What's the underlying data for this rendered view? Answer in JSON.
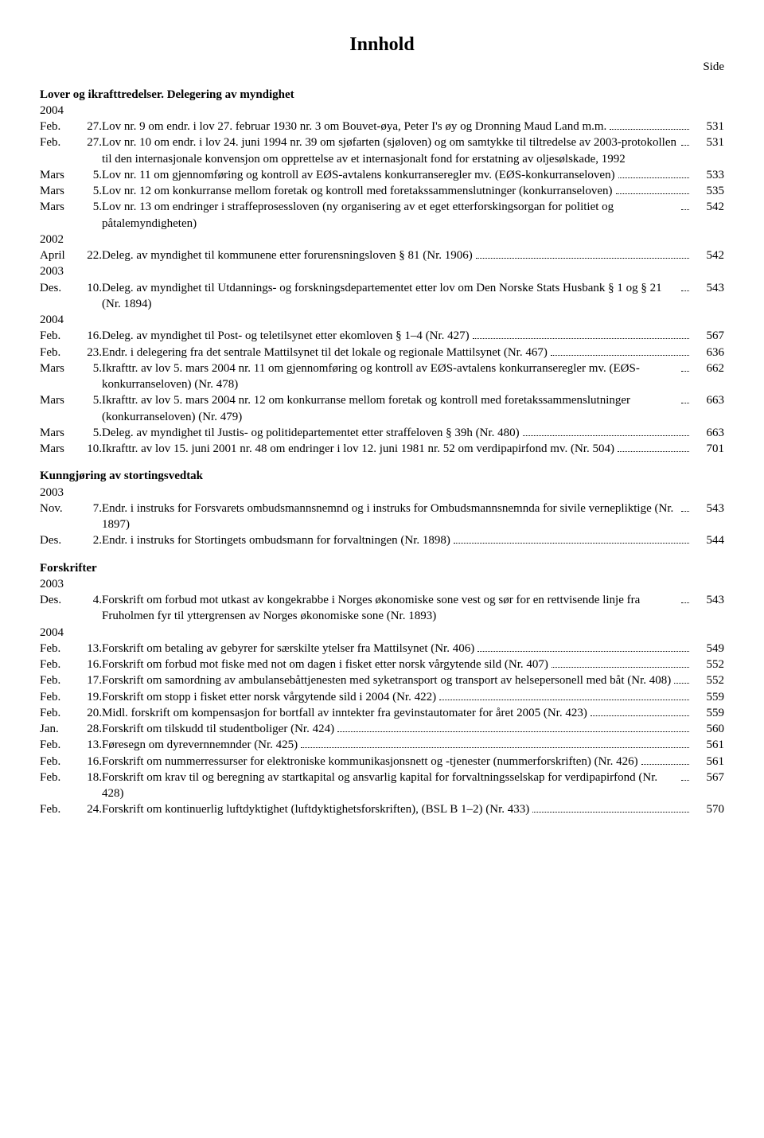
{
  "title": "Innhold",
  "side_label": "Side",
  "sections": [
    {
      "heading": "Lover og ikrafttredelser. Delegering av myndighet",
      "groups": [
        {
          "year": "2004",
          "entries": [
            {
              "month": "Feb.",
              "num": "27.",
              "text": "Lov nr. 9 om endr. i lov 27. februar 1930 nr. 3 om Bouvet-øya, Peter I's øy og Dronning Maud Land m.m.",
              "page": "531"
            },
            {
              "month": "Feb.",
              "num": "27.",
              "text": "Lov nr. 10 om endr. i lov 24. juni 1994 nr. 39 om sjøfarten (sjøloven) og om samtykke til tiltredelse av 2003-protokollen til den internasjonale konvensjon om opprettelse av et internasjonalt fond for erstatning av oljesølskade, 1992",
              "page": "531"
            },
            {
              "month": "Mars",
              "num": "5.",
              "text": "Lov nr. 11 om gjennomføring og kontroll av EØS-avtalens konkurranseregler mv. (EØS-konkurranseloven)",
              "page": "533"
            },
            {
              "month": "Mars",
              "num": "5.",
              "text": "Lov nr. 12 om konkurranse mellom foretak og kontroll med foretakssammenslutninger (konkurranseloven)",
              "page": "535"
            },
            {
              "month": "Mars",
              "num": "5.",
              "text": "Lov nr. 13 om endringer i straffeprosessloven (ny organisering av et eget etterforskingsorgan for politiet og påtalemyndigheten)",
              "page": "542"
            }
          ]
        },
        {
          "year": "2002",
          "entries": [
            {
              "month": "April",
              "num": "22.",
              "text": "Deleg. av myndighet til kommunene etter forurensningsloven § 81 (Nr. 1906)",
              "page": "542"
            }
          ]
        },
        {
          "year": "2003",
          "entries": [
            {
              "month": "Des.",
              "num": "10.",
              "text": "Deleg. av myndighet til Utdannings- og forskningsdepartementet etter lov om Den Norske Stats Husbank § 1 og § 21 (Nr. 1894)",
              "page": "543"
            }
          ]
        },
        {
          "year": "2004",
          "entries": [
            {
              "month": "Feb.",
              "num": "16.",
              "text": "Deleg. av myndighet til Post- og teletilsynet etter ekomloven § 1–4 (Nr. 427)",
              "page": "567"
            },
            {
              "month": "Feb.",
              "num": "23.",
              "text": "Endr. i delegering fra det sentrale Mattilsynet til det lokale og regionale Mattilsynet (Nr. 467)",
              "page": "636"
            },
            {
              "month": "Mars",
              "num": "5.",
              "text": "Ikrafttr. av lov 5. mars 2004 nr. 11 om gjennomføring og kontroll av EØS-avtalens konkurranseregler mv. (EØS-konkurranseloven) (Nr. 478)",
              "page": "662"
            },
            {
              "month": "Mars",
              "num": "5.",
              "text": "Ikrafttr. av lov 5. mars 2004 nr. 12 om konkurranse mellom foretak og kontroll med foretakssammenslutninger (konkurranseloven) (Nr. 479)",
              "page": "663"
            },
            {
              "month": "Mars",
              "num": "5.",
              "text": "Deleg. av myndighet til Justis- og politidepartementet etter straffeloven § 39h (Nr. 480)",
              "page": "663"
            },
            {
              "month": "Mars",
              "num": "10.",
              "text": "Ikrafttr. av lov 15. juni 2001 nr. 48 om endringer i lov 12. juni 1981 nr. 52 om verdipapirfond mv. (Nr. 504)",
              "page": "701"
            }
          ]
        }
      ]
    },
    {
      "heading": "Kunngjøring av stortingsvedtak",
      "groups": [
        {
          "year": "2003",
          "entries": [
            {
              "month": "Nov.",
              "num": "7.",
              "text": "Endr. i instruks for Forsvarets ombudsmannsnemnd og i instruks for Ombudsmannsnemnda for sivile vernepliktige (Nr. 1897)",
              "page": "543"
            },
            {
              "month": "Des.",
              "num": "2.",
              "text": "Endr. i instruks for Stortingets ombudsmann for forvaltningen (Nr. 1898)",
              "page": "544"
            }
          ]
        }
      ]
    },
    {
      "heading": "Forskrifter",
      "groups": [
        {
          "year": "2003",
          "entries": [
            {
              "month": "Des.",
              "num": "4.",
              "text": "Forskrift om forbud mot utkast av kongekrabbe i Norges økonomiske sone vest og sør for en rettvisende linje fra Fruholmen fyr til yttergrensen av Norges økonomiske sone (Nr. 1893)",
              "page": "543"
            }
          ]
        },
        {
          "year": "2004",
          "entries": [
            {
              "month": "Feb.",
              "num": "13.",
              "text": "Forskrift om betaling av gebyrer for særskilte ytelser fra Mattilsynet (Nr. 406)",
              "page": "549"
            },
            {
              "month": "Feb.",
              "num": "16.",
              "text": "Forskrift om forbud mot fiske med not om dagen i fisket etter norsk vårgytende sild (Nr. 407)",
              "page": "552"
            },
            {
              "month": "Feb.",
              "num": "17.",
              "text": "Forskrift om samordning av ambulansebåttjenesten med syketransport og transport av helsepersonell med båt (Nr. 408)",
              "page": "552"
            },
            {
              "month": "Feb.",
              "num": "19.",
              "text": "Forskrift om stopp i fisket etter norsk vårgytende sild i 2004 (Nr. 422)",
              "page": "559"
            },
            {
              "month": "Feb.",
              "num": "20.",
              "text": "Midl. forskrift om kompensasjon for bortfall av inntekter fra gevinstautomater for året 2005 (Nr. 423)",
              "page": "559"
            },
            {
              "month": "Jan.",
              "num": "28.",
              "text": "Forskrift om tilskudd til studentboliger (Nr. 424)",
              "page": "560"
            },
            {
              "month": "Feb.",
              "num": "13.",
              "text": "Føresegn om dyrevernnemnder (Nr. 425)",
              "page": "561"
            },
            {
              "month": "Feb.",
              "num": "16.",
              "text": "Forskrift om nummerressurser for elektroniske kommunikasjonsnett og -tjenester (nummerforskriften) (Nr. 426)",
              "page": "561"
            },
            {
              "month": "Feb.",
              "num": "18.",
              "text": "Forskrift om krav til og beregning av startkapital og ansvarlig kapital for forvaltningsselskap for verdipapirfond (Nr. 428)",
              "page": "567"
            },
            {
              "month": "Feb.",
              "num": "24.",
              "text": "Forskrift om kontinuerlig luftdyktighet (luftdyktighetsforskriften), (BSL B 1–2) (Nr. 433)",
              "page": "570"
            }
          ]
        }
      ]
    }
  ]
}
